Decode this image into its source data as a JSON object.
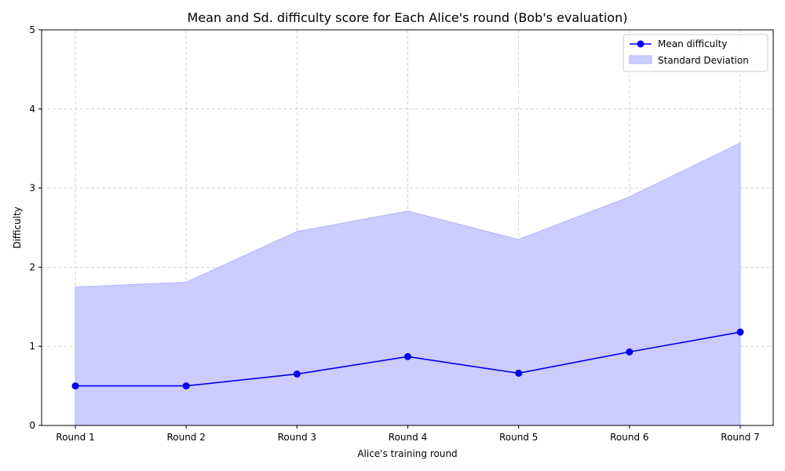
{
  "chart_data": {
    "type": "area",
    "title": "Mean and Sd. difficulty score for Each Alice's round (Bob's evaluation)",
    "xlabel": "Alice's training round",
    "ylabel": "Difficulty",
    "categories": [
      "Round 1",
      "Round 2",
      "Round 3",
      "Round 4",
      "Round 5",
      "Round 6",
      "Round 7"
    ],
    "series": [
      {
        "name": "Mean difficulty",
        "kind": "line",
        "color": "#0000ee",
        "values": [
          0.5,
          0.5,
          0.65,
          0.87,
          0.66,
          0.93,
          1.18
        ]
      },
      {
        "name": "Standard Deviation",
        "kind": "band",
        "color": "#ccccff",
        "lower": [
          0,
          0,
          0,
          0,
          0,
          0,
          0
        ],
        "upper": [
          1.75,
          1.81,
          2.45,
          2.71,
          2.35,
          2.89,
          3.57
        ]
      }
    ],
    "ylim": [
      0,
      5
    ],
    "yticks": [
      0,
      1,
      2,
      3,
      4,
      5
    ],
    "grid": true,
    "legend_position": "top-right"
  }
}
